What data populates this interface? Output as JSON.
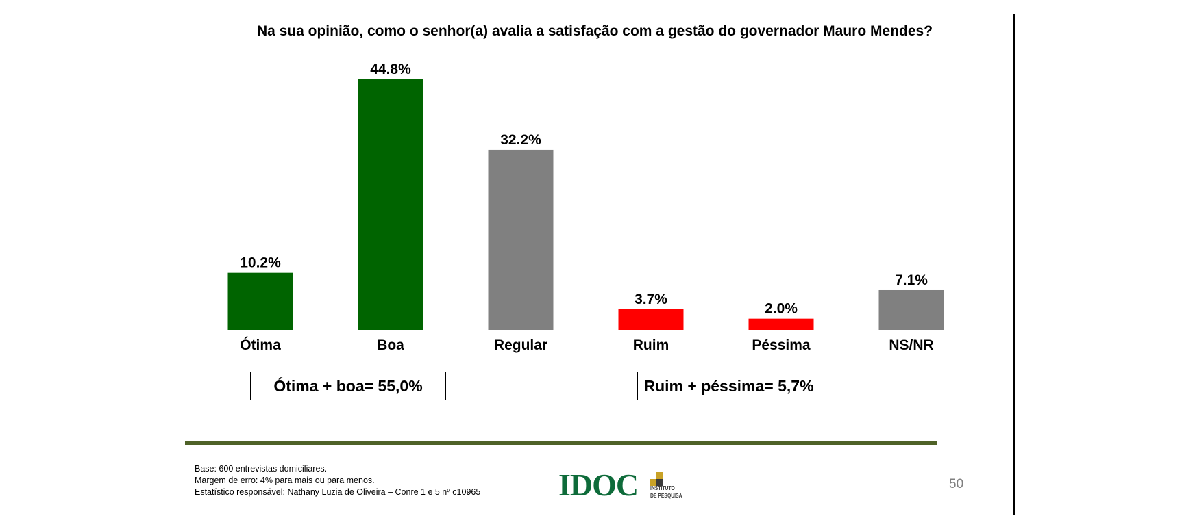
{
  "colors": {
    "green": "#006400",
    "gray": "#808080",
    "red": "#ff0000",
    "rule": "#4f6228",
    "logo_green": "#0e6b3a",
    "logo_gold": "#c9a227",
    "logo_dark": "#3b3b3b"
  },
  "chart_data": {
    "type": "bar",
    "title": "Na sua opinião, como o senhor(a) avalia a satisfação com a gestão do governador Mauro Mendes?",
    "categories": [
      "Ótima",
      "Boa",
      "Regular",
      "Ruim",
      "Péssima",
      "NS/NR"
    ],
    "values": [
      10.2,
      44.8,
      32.2,
      3.7,
      2.0,
      7.1
    ],
    "value_labels": [
      "10.2%",
      "44.8%",
      "32.2%",
      "3.7%",
      "2.0%",
      "7.1%"
    ],
    "bar_colors": [
      "#006400",
      "#006400",
      "#808080",
      "#ff0000",
      "#ff0000",
      "#808080"
    ],
    "ylim": [
      0,
      44.8
    ],
    "grid": false,
    "legend": "none"
  },
  "summary": {
    "positive": "Ótima + boa= 55,0%",
    "negative": "Ruim + péssima= 5,7%"
  },
  "footnote": {
    "line1": "Base: 600 entrevistas domiciliares.",
    "line2": "Margem de erro: 4% para mais ou para menos.",
    "line3": "Estatístico responsável: Nathany Luzia de Oliveira – Conre 1 e 5 nº c10965"
  },
  "logo": {
    "name": "IDOC",
    "sub1": "INSTITUTO",
    "sub2": "DE PESQUISA"
  },
  "page_number": "50"
}
